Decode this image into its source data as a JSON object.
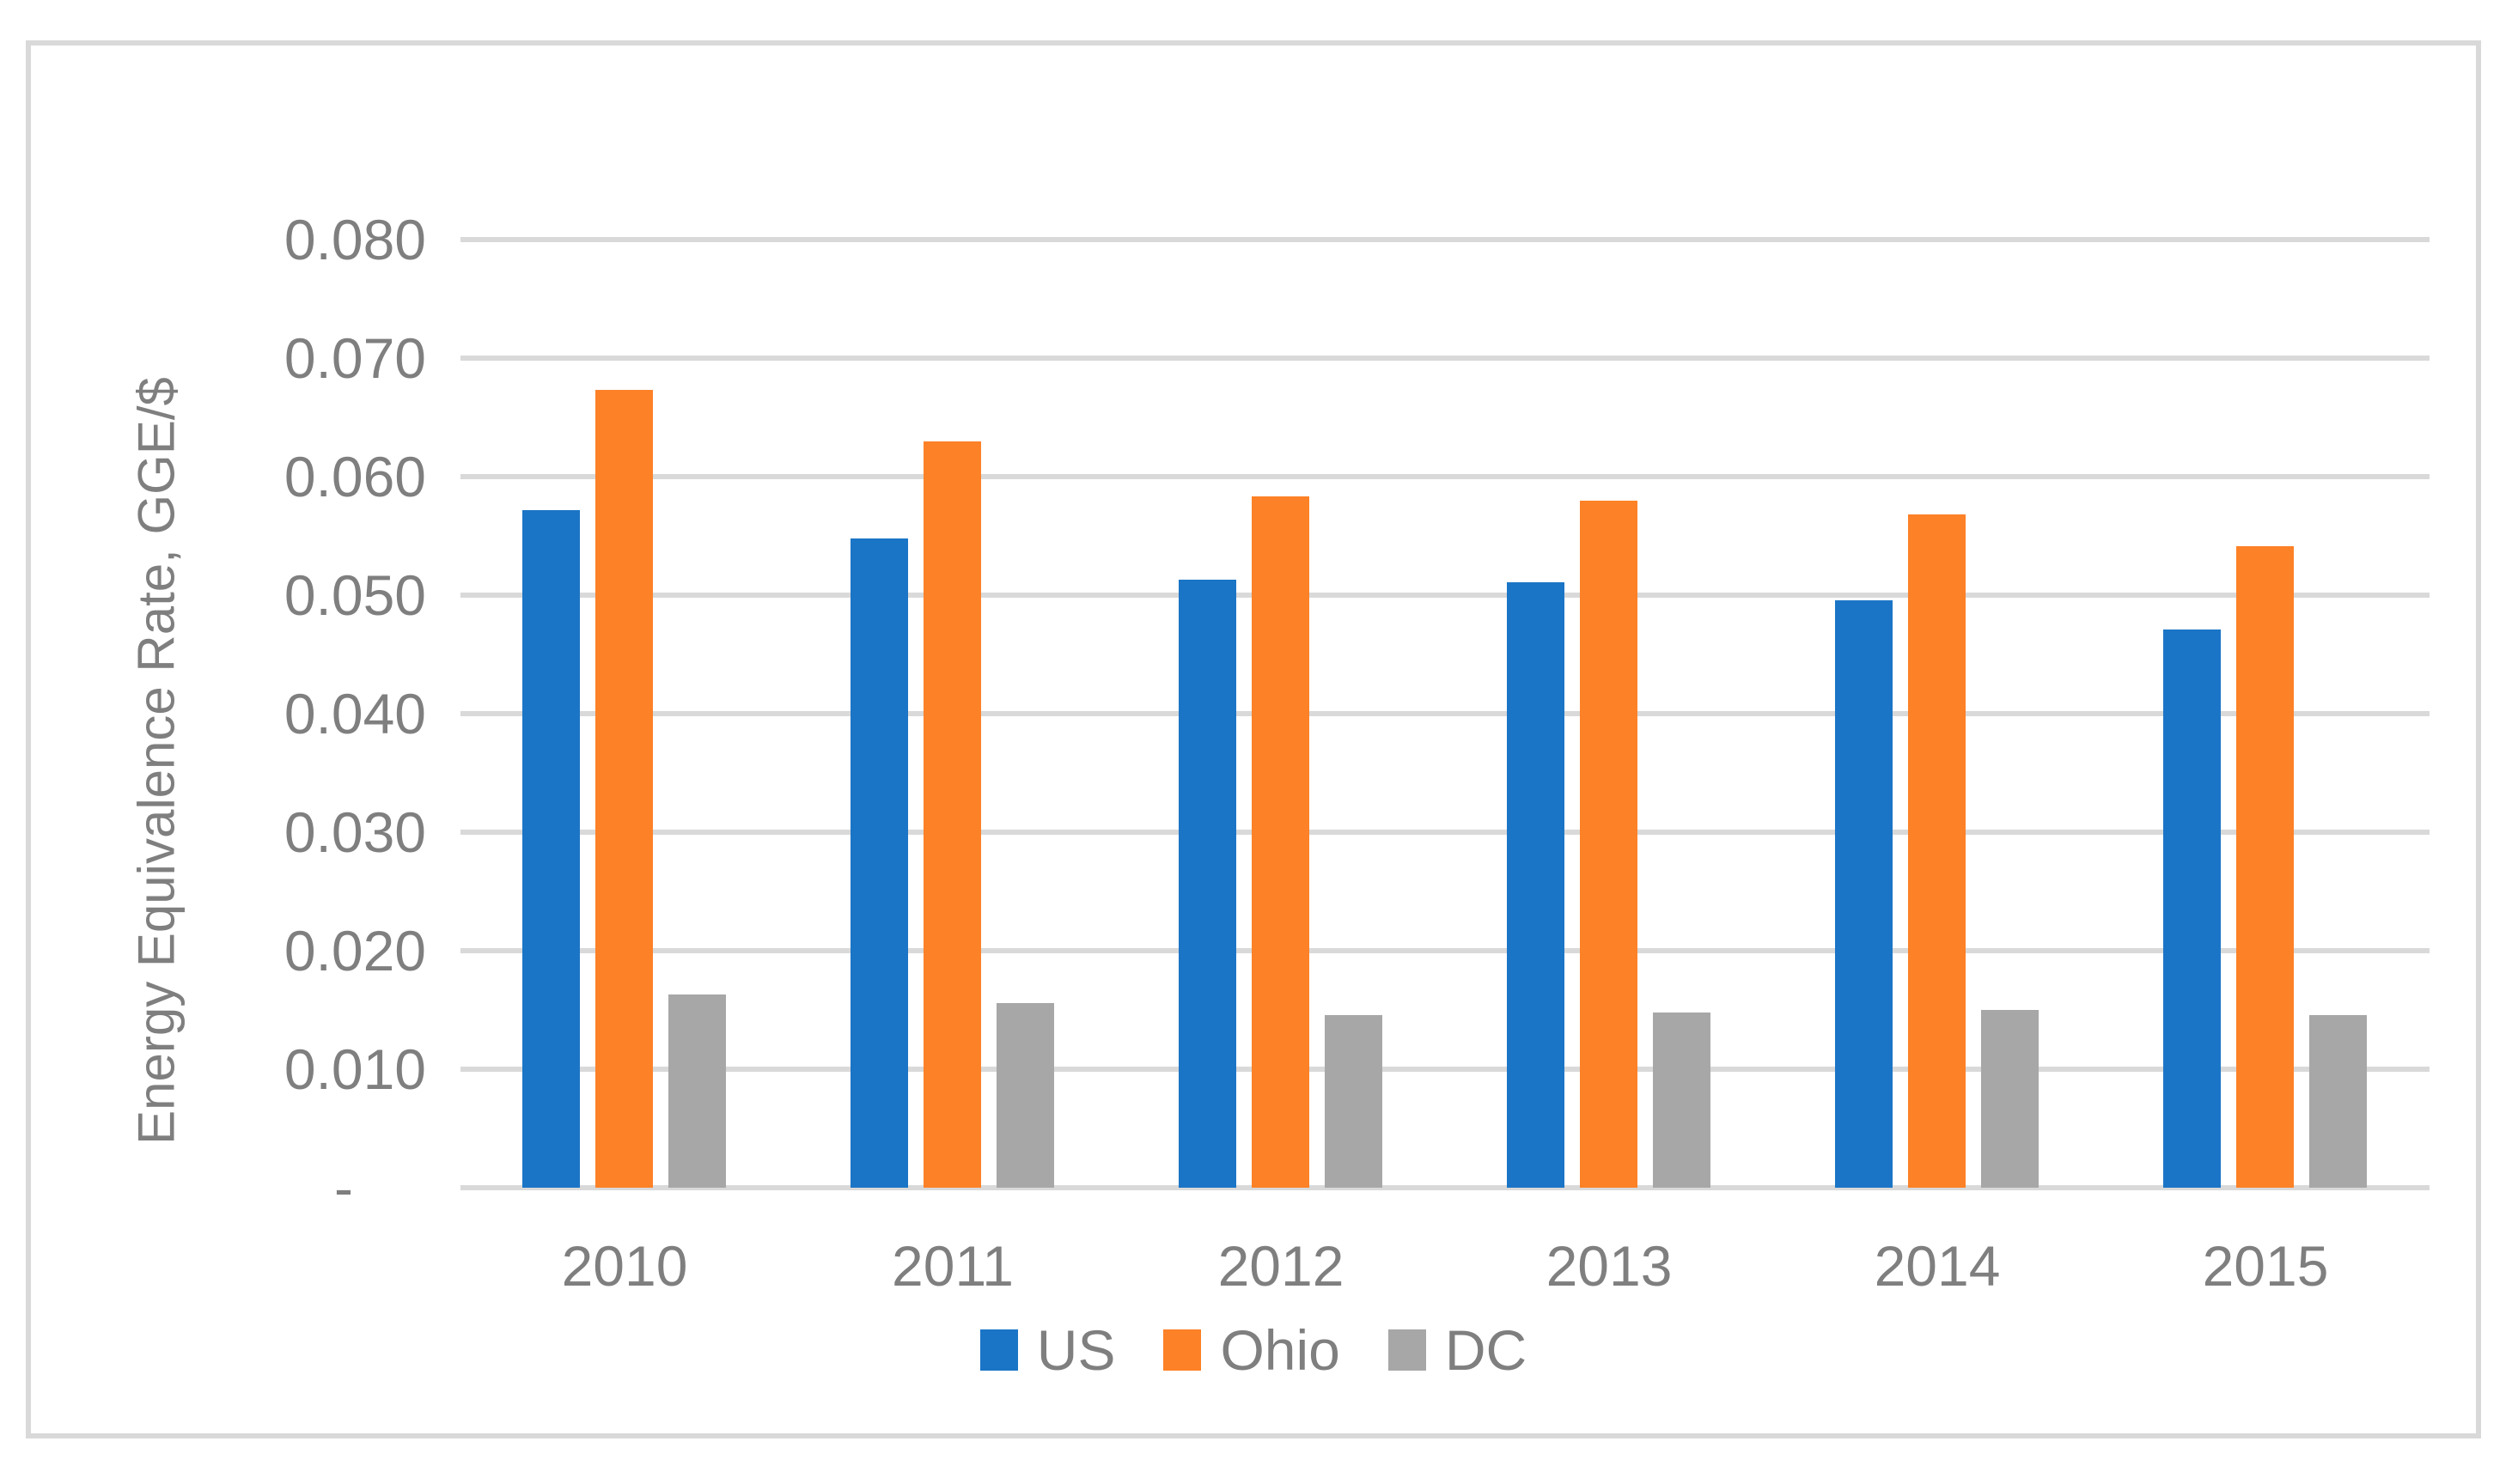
{
  "chart_data": {
    "type": "bar",
    "title": "",
    "xlabel": "",
    "ylabel": "Energy Equivalence Rate, GGE/$",
    "categories": [
      "2010",
      "2011",
      "2012",
      "2013",
      "2014",
      "2015"
    ],
    "series": [
      {
        "name": "US",
        "color": "#1B75C6",
        "values": [
          0.0572,
          0.0548,
          0.0513,
          0.0511,
          0.0496,
          0.0471
        ]
      },
      {
        "name": "Ohio",
        "color": "#FD8127",
        "values": [
          0.0673,
          0.063,
          0.0583,
          0.058,
          0.0568,
          0.0541
        ]
      },
      {
        "name": "DC",
        "color": "#A7A7A7",
        "values": [
          0.0163,
          0.0156,
          0.0146,
          0.0148,
          0.015,
          0.0146
        ]
      }
    ],
    "ylim": [
      0,
      0.08
    ],
    "ytick_step": 0.01,
    "ytick_labels": [
      "0.080",
      "0.070",
      "0.060",
      "0.050",
      "0.040",
      "0.030",
      "0.020",
      "0.010",
      "-"
    ],
    "grid": "horizontal",
    "legend_position": "bottom",
    "colors": {
      "gridline": "#D9D9D9",
      "chart_border": "#D9D9D9",
      "text": "#7F7F7F",
      "background": "#FFFFFF"
    }
  }
}
